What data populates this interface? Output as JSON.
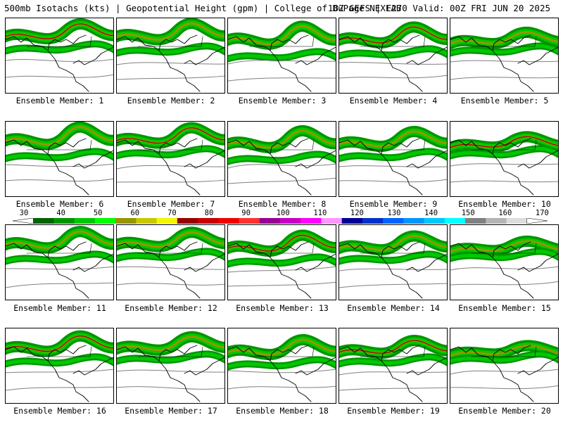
{
  "header": {
    "left": "500mb Isotachs (kts) | Geopotential Height (gpm) | College of DuPage NEXLAB",
    "right": "18Z GEFS | F270 Valid: 00Z FRI JUN 20 2025"
  },
  "members": [
    "Ensemble Member: 1",
    "Ensemble Member: 2",
    "Ensemble Member: 3",
    "Ensemble Member: 4",
    "Ensemble Member: 5",
    "Ensemble Member: 6",
    "Ensemble Member: 7",
    "Ensemble Member: 8",
    "Ensemble Member: 9",
    "Ensemble Member: 10",
    "Ensemble Member: 11",
    "Ensemble Member: 12",
    "Ensemble Member: 13",
    "Ensemble Member: 14",
    "Ensemble Member: 15",
    "Ensemble Member: 16",
    "Ensemble Member: 17",
    "Ensemble Member: 18",
    "Ensemble Member: 19",
    "Ensemble Member: 20"
  ],
  "colorbar": {
    "labels": [
      "30",
      "40",
      "50",
      "60",
      "70",
      "80",
      "90",
      "100",
      "110",
      "120",
      "130",
      "140",
      "150",
      "160",
      "170"
    ],
    "colors": [
      "#006400",
      "#009600",
      "#00c800",
      "#00ff00",
      "#969600",
      "#c8c800",
      "#f5f500",
      "#960000",
      "#c80000",
      "#f00000",
      "#ff3232",
      "#960096",
      "#c800c8",
      "#ff00ff",
      "#ff96ff",
      "#000096",
      "#0032c8",
      "#0064ff",
      "#0096ff",
      "#00c8ff",
      "#00ffff",
      "#808080",
      "#b4b4b4",
      "#dcdcdc"
    ]
  },
  "colors": {
    "jet_outer": "#009600",
    "jet_mid": "#00c800",
    "jet_core": "#969600",
    "jet_max": "#960000",
    "height_contour": "#808080",
    "coast": "#000000"
  }
}
